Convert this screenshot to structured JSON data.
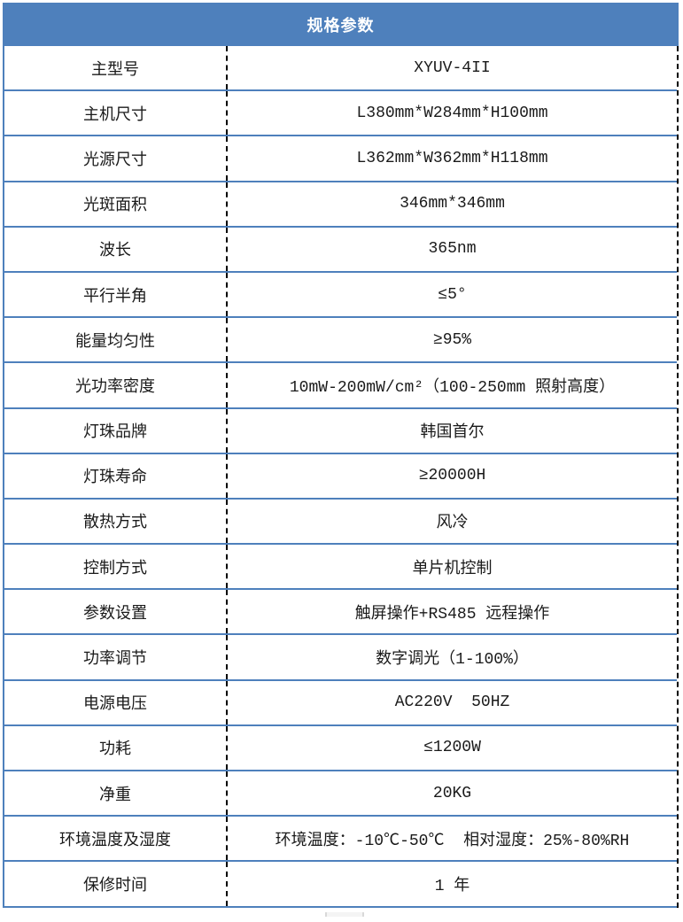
{
  "table": {
    "title": "规格参数",
    "rows": [
      {
        "label": "主型号",
        "value": "XYUV-4II"
      },
      {
        "label": "主机尺寸",
        "value": "L380mm*W284mm*H100mm"
      },
      {
        "label": "光源尺寸",
        "value": "L362mm*W362mm*H118mm"
      },
      {
        "label": "光斑面积",
        "value": "346mm*346mm"
      },
      {
        "label": "波长",
        "value": "365nm"
      },
      {
        "label": "平行半角",
        "value": "≤5°"
      },
      {
        "label": "能量均匀性",
        "value": "≥95%"
      },
      {
        "label": "光功率密度",
        "value": "10mW-200mW/cm²（100-250mm 照射高度）"
      },
      {
        "label": "灯珠品牌",
        "value": "韩国首尔"
      },
      {
        "label": "灯珠寿命",
        "value": "≥20000H"
      },
      {
        "label": "散热方式",
        "value": "风冷"
      },
      {
        "label": "控制方式",
        "value": "单片机控制"
      },
      {
        "label": "参数设置",
        "value": "触屏操作+RS485 远程操作"
      },
      {
        "label": "功率调节",
        "value": "数字调光（1-100%）"
      },
      {
        "label": "电源电压",
        "value": "AC220V  50HZ"
      },
      {
        "label": "功耗",
        "value": "≤1200W"
      },
      {
        "label": "净重",
        "value": "20KG"
      },
      {
        "label": "环境温度及湿度",
        "value": "环境温度：-10℃-50℃  相对湿度：25%-80%RH"
      },
      {
        "label": "保修时间",
        "value": "1 年"
      }
    ]
  },
  "colors": {
    "header_bg": "#4e80bc",
    "header_text": "#ffffff",
    "grid_blue": "#4e80bc",
    "divider_black": "#000000",
    "body_text": "#1a1a1a"
  }
}
